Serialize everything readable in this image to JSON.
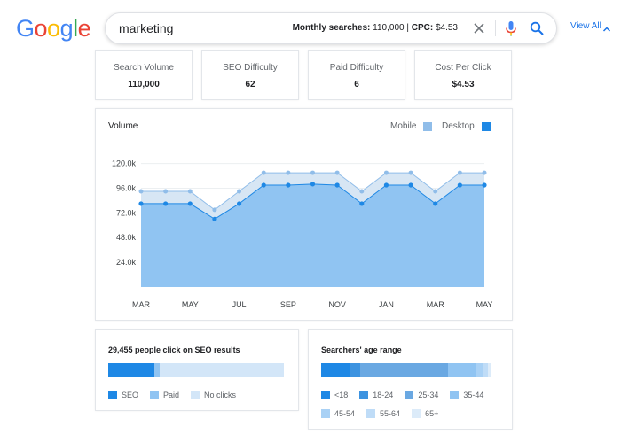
{
  "logo": {
    "letters": [
      "G",
      "o",
      "o",
      "g",
      "l",
      "e"
    ],
    "colors": [
      "#4285F4",
      "#EA4335",
      "#FBBC05",
      "#4285F4",
      "#34A853",
      "#EA4335"
    ]
  },
  "search": {
    "query": "marketing",
    "monthly_label": "Monthly searches:",
    "monthly_value": "110,000",
    "separator": "|",
    "cpc_label": "CPC:",
    "cpc_value": "$4.53",
    "view_all": "View All"
  },
  "stats": [
    {
      "label": "Search Volume",
      "value": "110,000"
    },
    {
      "label": "SEO Difficulty",
      "value": "62"
    },
    {
      "label": "Paid Difficulty",
      "value": "6"
    },
    {
      "label": "Cost Per Click",
      "value": "$4.53"
    }
  ],
  "volume_card": {
    "title": "Volume",
    "legend": [
      {
        "name": "Mobile",
        "color": "#90bde9"
      },
      {
        "name": "Desktop",
        "color": "#1e88e5"
      }
    ]
  },
  "chart_data": {
    "type": "area",
    "title": "Volume",
    "x": [
      "MAR",
      "",
      "MAY",
      "",
      "JUL",
      "",
      "SEP",
      "",
      "NOV",
      "",
      "JAN",
      "",
      "MAR",
      "",
      "MAY"
    ],
    "x_tick_labels": [
      "MAR",
      "MAY",
      "JUL",
      "SEP",
      "NOV",
      "JAN",
      "MAR",
      "MAY"
    ],
    "y_tick_labels": [
      "24.0k",
      "48.0k",
      "72.0k",
      "96.0k",
      "120.0k"
    ],
    "ylim": [
      0,
      130000
    ],
    "series": [
      {
        "name": "Desktop",
        "values": [
          81000,
          81000,
          81000,
          66000,
          81000,
          99000,
          99000,
          100000,
          99000,
          81000,
          99000,
          99000,
          81000,
          99000,
          99000
        ]
      },
      {
        "name": "Mobile",
        "values": [
          93000,
          93000,
          93000,
          75000,
          93000,
          111000,
          111000,
          111000,
          111000,
          93000,
          111000,
          111000,
          93000,
          111000,
          111000
        ]
      }
    ],
    "colors": {
      "desktop_fill": "#90c4f2",
      "desktop_line": "#1e88e5",
      "mobile_fill": "#d7e6f4",
      "mobile_line": "#90bde9"
    }
  },
  "seo_card": {
    "title": "29,455 people click on SEO results",
    "segments": [
      {
        "name": "SEO",
        "fraction": 0.265,
        "color": "#1e88e5"
      },
      {
        "name": "Paid",
        "fraction": 0.03,
        "color": "#90c4f2"
      },
      {
        "name": "No clicks",
        "fraction": 0.705,
        "color": "#d3e6f8"
      }
    ]
  },
  "age_card": {
    "title": "Searchers' age range",
    "segments": [
      {
        "name": "<18",
        "fraction": 0.16,
        "color": "#1e88e5"
      },
      {
        "name": "18-24",
        "fraction": 0.06,
        "color": "#3d93e0"
      },
      {
        "name": "25-34",
        "fraction": 0.5,
        "color": "#6aa8e2"
      },
      {
        "name": "35-44",
        "fraction": 0.16,
        "color": "#90c4f2"
      },
      {
        "name": "45-54",
        "fraction": 0.04,
        "color": "#a9d1f5"
      },
      {
        "name": "55-64",
        "fraction": 0.03,
        "color": "#bfdcf7"
      },
      {
        "name": "65+",
        "fraction": 0.02,
        "color": "#dcebf9"
      }
    ]
  }
}
